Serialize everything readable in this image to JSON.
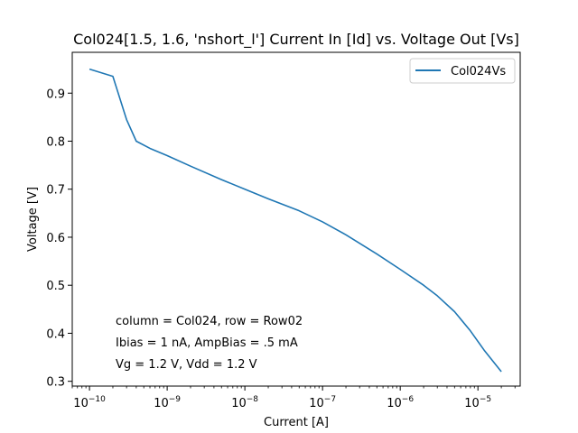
{
  "chart_data": {
    "type": "line",
    "title": "Col024[1.5, 1.6, 'nshort_l'] Current In [Id] vs. Voltage Out [Vs]",
    "xlabel": "Current [A]",
    "ylabel": "Voltage [V]",
    "xscale": "log",
    "xlim": [
      6e-11,
      3.5e-05
    ],
    "ylim": [
      0.29,
      0.985
    ],
    "grid": false,
    "legend_position": "top-right",
    "x_ticks": [
      {
        "value": 1e-10,
        "base": "10",
        "exp": "−10"
      },
      {
        "value": 1e-09,
        "base": "10",
        "exp": "−9"
      },
      {
        "value": 1e-08,
        "base": "10",
        "exp": "−8"
      },
      {
        "value": 1e-07,
        "base": "10",
        "exp": "−7"
      },
      {
        "value": 1e-06,
        "base": "10",
        "exp": "−6"
      },
      {
        "value": 1e-05,
        "base": "10",
        "exp": "−5"
      }
    ],
    "y_ticks": [
      {
        "value": 0.3,
        "label": "0.3"
      },
      {
        "value": 0.4,
        "label": "0.4"
      },
      {
        "value": 0.5,
        "label": "0.5"
      },
      {
        "value": 0.6,
        "label": "0.6"
      },
      {
        "value": 0.7,
        "label": "0.7"
      },
      {
        "value": 0.8,
        "label": "0.8"
      },
      {
        "value": 0.9,
        "label": "0.9"
      }
    ],
    "series": [
      {
        "name": "Col024Vs",
        "color": "#1f77b4",
        "x": [
          1e-10,
          2e-10,
          3e-10,
          4e-10,
          6e-10,
          1e-09,
          2e-09,
          5e-09,
          1e-08,
          2e-08,
          5e-08,
          1e-07,
          2e-07,
          5e-07,
          1e-06,
          2e-06,
          3e-06,
          5e-06,
          8e-06,
          1.2e-05,
          2e-05
        ],
        "y": [
          0.95,
          0.935,
          0.845,
          0.8,
          0.785,
          0.77,
          0.748,
          0.72,
          0.7,
          0.68,
          0.655,
          0.632,
          0.605,
          0.565,
          0.533,
          0.5,
          0.478,
          0.445,
          0.405,
          0.365,
          0.32
        ]
      }
    ],
    "annotations": [
      "column = Col024, row = Row02",
      "Ibias = 1 nA, AmpBias = .5 mA",
      "Vg = 1.2 V, Vdd = 1.2 V"
    ]
  }
}
